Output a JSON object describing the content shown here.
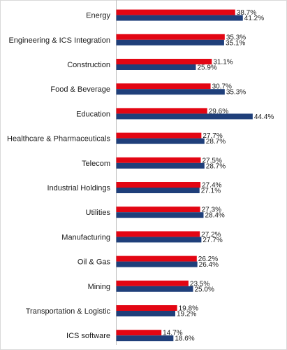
{
  "chart_data": {
    "type": "bar",
    "orientation": "horizontal",
    "categories": [
      "Energy",
      "Engineering & ICS Integration",
      "Construction",
      "Food & Beverage",
      "Education",
      "Healthcare & Pharmaceuticals",
      "Telecom",
      "Industrial Holdings",
      "Utilities",
      "Manufacturing",
      "Oil & Gas",
      "Mining",
      "Transportation & Logistic",
      "ICS software"
    ],
    "series": [
      {
        "color": "#e30613",
        "values": [
          38.7,
          35.3,
          31.1,
          30.7,
          29.6,
          27.7,
          27.5,
          27.4,
          27.3,
          27.2,
          26.2,
          23.5,
          19.8,
          14.7
        ],
        "labels": [
          "38.7%",
          "35.3%",
          "31.1%",
          "30.7%",
          "29.6%",
          "27.7%",
          "27.5%",
          "27.4%",
          "27.3%",
          "27.2%",
          "26.2%",
          "23.5%",
          "19.8%",
          "14.7%"
        ]
      },
      {
        "color": "#1f3f7a",
        "values": [
          41.2,
          35.1,
          25.9,
          35.3,
          44.4,
          28.7,
          28.7,
          27.1,
          28.4,
          27.7,
          26.4,
          25.0,
          19.2,
          18.6
        ],
        "labels": [
          "41.2%",
          "35.1%",
          "25.9%",
          "35.3%",
          "44.4%",
          "28.7%",
          "28.7%",
          "27.1%",
          "28.4%",
          "27.7%",
          "26.4%",
          "25.0%",
          "19.2%",
          "18.6%"
        ]
      }
    ],
    "xlim": [
      0,
      50
    ],
    "grid": false,
    "legend": "none",
    "title": "",
    "xlabel": "",
    "ylabel": ""
  }
}
